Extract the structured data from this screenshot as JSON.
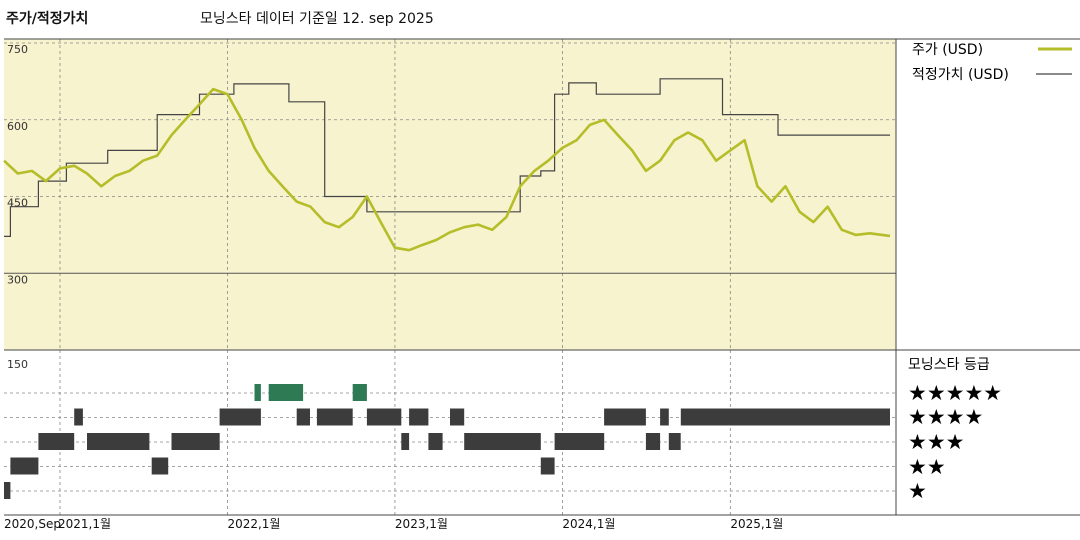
{
  "header": {
    "title": "주가/적정가치",
    "subtitle": "모닝스타 데이터 기준일 12. sep 2025"
  },
  "legend": {
    "price_label": "주가 (USD)",
    "fair_label": "적정가치 (USD)"
  },
  "rating_panel": {
    "title": "모닝스타 등급",
    "star_labels": [
      "★★★★★",
      "★★★★",
      "★★★",
      "★★",
      "★"
    ]
  },
  "colors": {
    "price": "#b5bd28",
    "fair": "#444444",
    "upper_bg": "#f7f3cf",
    "bar": "#3c3c3c",
    "five_star_bar": "#2e7a55"
  },
  "chart_data": {
    "type": "line",
    "x_tick_labels": [
      "2020,Sep",
      "2021,1월",
      "2022,1월",
      "2023,1월",
      "2024,1월",
      "2025,1월"
    ],
    "x_range": [
      "2020-09-01",
      "2025-12-15"
    ],
    "upper": {
      "ylim": [
        150,
        750
      ],
      "yticks": [
        300,
        450,
        600,
        750
      ],
      "grid": true,
      "series": [
        {
          "name": "주가 (USD)",
          "points": [
            [
              "2020-09-01",
              520
            ],
            [
              "2020-10-01",
              495
            ],
            [
              "2020-11-01",
              500
            ],
            [
              "2020-12-01",
              480
            ],
            [
              "2021-01-01",
              505
            ],
            [
              "2021-02-01",
              510
            ],
            [
              "2021-03-01",
              495
            ],
            [
              "2021-04-01",
              470
            ],
            [
              "2021-05-01",
              490
            ],
            [
              "2021-06-01",
              500
            ],
            [
              "2021-07-01",
              520
            ],
            [
              "2021-08-01",
              530
            ],
            [
              "2021-09-01",
              570
            ],
            [
              "2021-10-01",
              600
            ],
            [
              "2021-11-01",
              630
            ],
            [
              "2021-12-01",
              660
            ],
            [
              "2022-01-01",
              650
            ],
            [
              "2022-02-01",
              600
            ],
            [
              "2022-03-01",
              545
            ],
            [
              "2022-04-01",
              500
            ],
            [
              "2022-05-01",
              470
            ],
            [
              "2022-06-01",
              440
            ],
            [
              "2022-07-01",
              430
            ],
            [
              "2022-08-01",
              400
            ],
            [
              "2022-09-01",
              390
            ],
            [
              "2022-10-01",
              410
            ],
            [
              "2022-11-01",
              450
            ],
            [
              "2022-12-01",
              400
            ],
            [
              "2023-01-01",
              350
            ],
            [
              "2023-02-01",
              345
            ],
            [
              "2023-03-01",
              355
            ],
            [
              "2023-04-01",
              365
            ],
            [
              "2023-05-01",
              380
            ],
            [
              "2023-06-01",
              390
            ],
            [
              "2023-07-01",
              395
            ],
            [
              "2023-08-01",
              385
            ],
            [
              "2023-09-01",
              410
            ],
            [
              "2023-10-01",
              470
            ],
            [
              "2023-11-01",
              500
            ],
            [
              "2023-12-01",
              520
            ],
            [
              "2024-01-01",
              545
            ],
            [
              "2024-02-01",
              560
            ],
            [
              "2024-03-01",
              590
            ],
            [
              "2024-04-01",
              600
            ],
            [
              "2024-05-01",
              570
            ],
            [
              "2024-06-01",
              540
            ],
            [
              "2024-07-01",
              500
            ],
            [
              "2024-08-01",
              520
            ],
            [
              "2024-09-01",
              560
            ],
            [
              "2024-10-01",
              575
            ],
            [
              "2024-11-01",
              560
            ],
            [
              "2024-12-01",
              520
            ],
            [
              "2025-01-01",
              540
            ],
            [
              "2025-02-01",
              560
            ],
            [
              "2025-03-01",
              470
            ],
            [
              "2025-04-01",
              440
            ],
            [
              "2025-05-01",
              470
            ],
            [
              "2025-06-01",
              420
            ],
            [
              "2025-07-01",
              400
            ],
            [
              "2025-08-01",
              430
            ],
            [
              "2025-09-01",
              385
            ],
            [
              "2025-10-01",
              375
            ],
            [
              "2025-11-01",
              378
            ],
            [
              "2025-12-15",
              373
            ]
          ]
        },
        {
          "name": "적정가치 (USD)",
          "points": [
            [
              "2020-09-01",
              372
            ],
            [
              "2020-09-15",
              430
            ],
            [
              "2020-11-15",
              480
            ],
            [
              "2021-01-15",
              515
            ],
            [
              "2021-04-15",
              540
            ],
            [
              "2021-08-01",
              610
            ],
            [
              "2021-11-01",
              650
            ],
            [
              "2022-01-15",
              670
            ],
            [
              "2022-05-15",
              635
            ],
            [
              "2022-08-01",
              450
            ],
            [
              "2022-11-01",
              420
            ],
            [
              "2023-01-01",
              420
            ],
            [
              "2023-10-01",
              490
            ],
            [
              "2023-11-15",
              500
            ],
            [
              "2023-12-15",
              650
            ],
            [
              "2024-01-15",
              672
            ],
            [
              "2024-03-15",
              650
            ],
            [
              "2024-08-01",
              680
            ],
            [
              "2024-12-15",
              610
            ],
            [
              "2025-04-15",
              570
            ],
            [
              "2025-12-15",
              570
            ]
          ]
        }
      ]
    },
    "lower": {
      "title": "모닝스타 등급",
      "ytick_label": "150",
      "rating_levels": [
        5,
        4,
        3,
        2,
        1
      ],
      "periods": [
        {
          "start": "2020-09-01",
          "end": "2020-09-15",
          "rating": 1
        },
        {
          "start": "2020-09-15",
          "end": "2020-11-15",
          "rating": 2
        },
        {
          "start": "2020-11-15",
          "end": "2021-02-01",
          "rating": 3
        },
        {
          "start": "2021-02-01",
          "end": "2021-02-20",
          "rating": 4
        },
        {
          "start": "2021-03-01",
          "end": "2021-07-15",
          "rating": 3
        },
        {
          "start": "2021-07-20",
          "end": "2021-08-25",
          "rating": 2
        },
        {
          "start": "2021-09-01",
          "end": "2021-12-15",
          "rating": 3
        },
        {
          "start": "2021-12-15",
          "end": "2022-03-15",
          "rating": 4
        },
        {
          "start": "2022-03-01",
          "end": "2022-03-15",
          "rating": 5
        },
        {
          "start": "2022-04-01",
          "end": "2022-06-15",
          "rating": 5
        },
        {
          "start": "2022-06-01",
          "end": "2022-06-30",
          "rating": 4
        },
        {
          "start": "2022-07-15",
          "end": "2022-10-01",
          "rating": 4
        },
        {
          "start": "2022-10-01",
          "end": "2022-11-01",
          "rating": 5
        },
        {
          "start": "2022-11-01",
          "end": "2023-01-15",
          "rating": 4
        },
        {
          "start": "2023-01-15",
          "end": "2023-02-01",
          "rating": 3
        },
        {
          "start": "2023-02-01",
          "end": "2023-03-15",
          "rating": 4
        },
        {
          "start": "2023-03-15",
          "end": "2023-04-15",
          "rating": 3
        },
        {
          "start": "2023-05-01",
          "end": "2023-06-01",
          "rating": 4
        },
        {
          "start": "2023-06-01",
          "end": "2023-11-15",
          "rating": 3
        },
        {
          "start": "2023-11-15",
          "end": "2023-12-15",
          "rating": 2
        },
        {
          "start": "2023-12-15",
          "end": "2024-04-01",
          "rating": 3
        },
        {
          "start": "2024-04-01",
          "end": "2024-07-01",
          "rating": 4
        },
        {
          "start": "2024-07-01",
          "end": "2024-08-01",
          "rating": 3
        },
        {
          "start": "2024-08-01",
          "end": "2024-08-20",
          "rating": 4
        },
        {
          "start": "2024-08-20",
          "end": "2024-09-15",
          "rating": 3
        },
        {
          "start": "2024-09-15",
          "end": "2025-12-15",
          "rating": 4
        }
      ]
    }
  }
}
